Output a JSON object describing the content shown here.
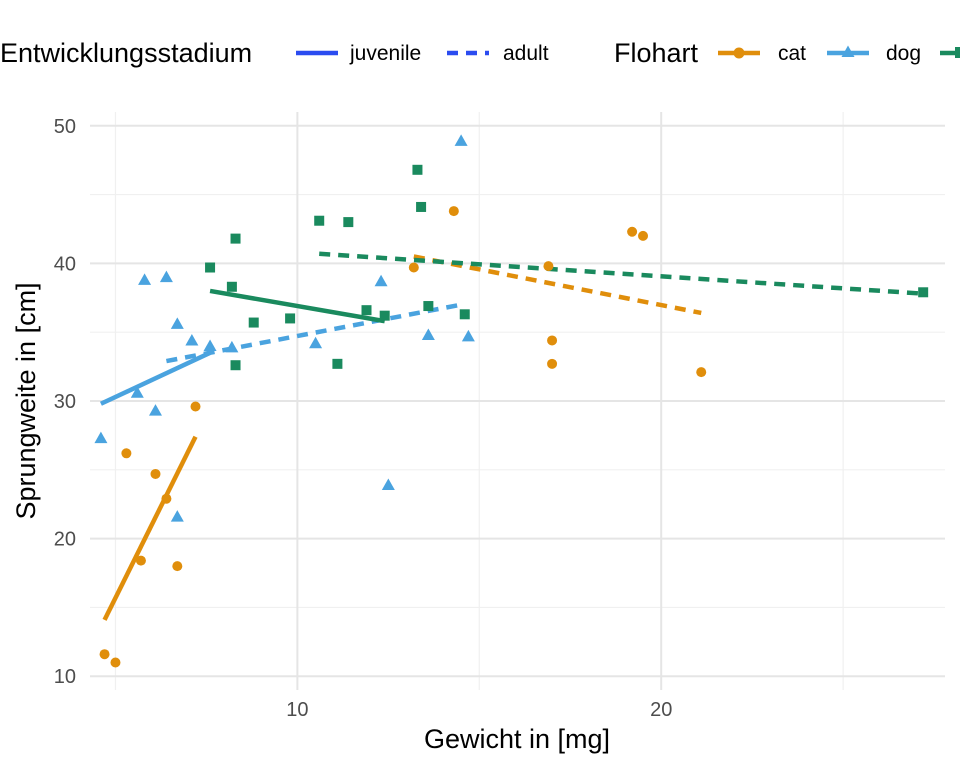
{
  "chart_data": {
    "type": "scatter",
    "title": "",
    "xlabel": "Gewicht in [mg]",
    "ylabel": "Sprungweite in [cm]",
    "xlim": [
      4.3,
      27.8
    ],
    "ylim": [
      9.0,
      51.0
    ],
    "x_ticks": [
      10,
      20
    ],
    "y_ticks": [
      10,
      20,
      30,
      40,
      50
    ],
    "grid": true,
    "legend": {
      "position": "top",
      "linetype_title": "Entwicklungsstadium",
      "linetype_entries": [
        {
          "label": "juvenile",
          "dash": "solid"
        },
        {
          "label": "adult",
          "dash": "dashed"
        }
      ],
      "color_title": "Flohart",
      "color_entries": [
        {
          "label": "cat",
          "color": "#E08E0B",
          "shape": "circle"
        },
        {
          "label": "dog",
          "color": "#4AA3DF",
          "shape": "triangle"
        },
        {
          "label": "",
          "color": "#1A8A5E",
          "shape": "square"
        }
      ]
    },
    "series": [
      {
        "name": "cat",
        "color": "#E08E0B",
        "shape": "circle",
        "points": [
          [
            4.7,
            11.6
          ],
          [
            5.0,
            11.0
          ],
          [
            5.3,
            26.2
          ],
          [
            5.7,
            18.4
          ],
          [
            6.1,
            24.7
          ],
          [
            6.4,
            22.9
          ],
          [
            6.7,
            18.0
          ],
          [
            7.2,
            29.6
          ],
          [
            13.2,
            39.7
          ],
          [
            14.3,
            43.8
          ],
          [
            16.9,
            39.8
          ],
          [
            17.0,
            34.4
          ],
          [
            17.0,
            32.7
          ],
          [
            19.2,
            42.3
          ],
          [
            19.5,
            42.0
          ],
          [
            21.1,
            32.1
          ]
        ],
        "fit_juvenile": [
          [
            4.7,
            14.1
          ],
          [
            7.2,
            27.4
          ]
        ],
        "fit_adult": [
          [
            13.2,
            40.5
          ],
          [
            21.1,
            36.4
          ]
        ]
      },
      {
        "name": "dog",
        "color": "#4AA3DF",
        "shape": "triangle",
        "points": [
          [
            4.6,
            27.3
          ],
          [
            5.6,
            30.6
          ],
          [
            5.8,
            38.8
          ],
          [
            6.1,
            29.3
          ],
          [
            6.4,
            39.0
          ],
          [
            6.7,
            21.6
          ],
          [
            6.7,
            35.6
          ],
          [
            7.1,
            34.4
          ],
          [
            7.6,
            34.0
          ],
          [
            8.2,
            33.9
          ],
          [
            10.5,
            34.2
          ],
          [
            12.3,
            38.7
          ],
          [
            12.5,
            23.9
          ],
          [
            13.6,
            34.8
          ],
          [
            14.5,
            48.9
          ],
          [
            14.7,
            34.7
          ]
        ],
        "fit_juvenile": [
          [
            4.6,
            29.8
          ],
          [
            7.6,
            33.5
          ]
        ],
        "fit_adult": [
          [
            6.4,
            32.9
          ],
          [
            14.5,
            37.0
          ]
        ]
      },
      {
        "name": "",
        "color": "#1A8A5E",
        "shape": "square",
        "points": [
          [
            7.6,
            39.7
          ],
          [
            8.2,
            38.3
          ],
          [
            8.3,
            41.8
          ],
          [
            8.3,
            32.6
          ],
          [
            8.8,
            35.7
          ],
          [
            9.8,
            36.0
          ],
          [
            10.6,
            43.1
          ],
          [
            11.1,
            32.7
          ],
          [
            11.4,
            43.0
          ],
          [
            11.9,
            36.6
          ],
          [
            12.4,
            36.2
          ],
          [
            13.3,
            46.8
          ],
          [
            13.4,
            44.1
          ],
          [
            13.6,
            36.9
          ],
          [
            14.6,
            36.3
          ],
          [
            27.2,
            37.9
          ]
        ],
        "fit_juvenile": [
          [
            7.6,
            38.0
          ],
          [
            12.4,
            35.8
          ]
        ],
        "fit_adult": [
          [
            10.6,
            40.7
          ],
          [
            27.2,
            37.8
          ]
        ]
      }
    ]
  }
}
